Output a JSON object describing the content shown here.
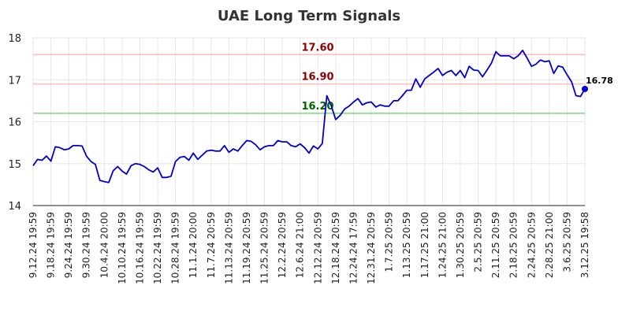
{
  "chart_data": {
    "type": "line",
    "title": "UAE Long Term Signals",
    "xlabel": "",
    "ylabel": "",
    "ylim": [
      14,
      18
    ],
    "yticks": [
      14,
      15,
      16,
      17,
      18
    ],
    "grid": true,
    "line_color": "#0000cc",
    "x_tick_labels": [
      "9.12.24 19:59",
      "9.18.24 19:59",
      "9.24.24 19:59",
      "9.30.24 19:59",
      "10.4.24 20:00",
      "10.10.24 19:59",
      "10.16.24 19:59",
      "10.22.24 19:59",
      "10.28.24 19:59",
      "11.1.24 20:00",
      "11.7.24 20:59",
      "11.13.24 20:59",
      "11.19.24 20:59",
      "11.25.24 20:59",
      "12.2.24 20:59",
      "12.6.24 21:00",
      "12.12.24 20:59",
      "12.18.24 20:59",
      "12.24.24 17:59",
      "12.31.24 20:59",
      "1.7.25 20:59",
      "1.13.25 20:59",
      "1.17.25 21:00",
      "1.24.25 21:00",
      "1.30.25 20:59",
      "2.5.25 20:59",
      "2.11.25 20:59",
      "2.18.25 20:59",
      "2.24.25 20:59",
      "2.28.25 21:00",
      "3.6.25 20:59",
      "3.12.25 19:58"
    ],
    "reference_lines": [
      {
        "value": 17.6,
        "label": "17.60",
        "line_color": "#ffbbbb",
        "label_color": "#8b0000"
      },
      {
        "value": 16.9,
        "label": "16.90",
        "line_color": "#ffbbbb",
        "label_color": "#8b0000"
      },
      {
        "value": 16.2,
        "label": "16.20",
        "line_color": "#77dd77",
        "label_color": "#006400"
      }
    ],
    "last_value": {
      "value": 16.78,
      "label": "16.78"
    },
    "series": [
      {
        "values": [
          14.95,
          15.1,
          15.08,
          15.18,
          15.06,
          15.4,
          15.38,
          15.33,
          15.35,
          15.43,
          15.43,
          15.42,
          15.18,
          15.05,
          14.98,
          14.6,
          14.57,
          14.55,
          14.83,
          14.93,
          14.82,
          14.75,
          14.95,
          15.0,
          14.98,
          14.93,
          14.85,
          14.8,
          14.9,
          14.67,
          14.67,
          14.7,
          15.05,
          15.15,
          15.17,
          15.08,
          15.25,
          15.1,
          15.2,
          15.3,
          15.32,
          15.3,
          15.3,
          15.43,
          15.27,
          15.35,
          15.3,
          15.43,
          15.55,
          15.53,
          15.45,
          15.33,
          15.4,
          15.43,
          15.43,
          15.55,
          15.52,
          15.52,
          15.43,
          15.4,
          15.47,
          15.38,
          15.25,
          15.42,
          15.35,
          15.48,
          16.62,
          16.38,
          16.05,
          16.15,
          16.3,
          16.37,
          16.47,
          16.55,
          16.4,
          16.45,
          16.47,
          16.35,
          16.4,
          16.37,
          16.37,
          16.5,
          16.5,
          16.62,
          16.75,
          16.75,
          17.02,
          16.82,
          17.02,
          17.1,
          17.18,
          17.27,
          17.1,
          17.18,
          17.22,
          17.1,
          17.22,
          17.05,
          17.32,
          17.23,
          17.22,
          17.07,
          17.23,
          17.4,
          17.67,
          17.57,
          17.57,
          17.57,
          17.5,
          17.57,
          17.7,
          17.52,
          17.32,
          17.37,
          17.47,
          17.43,
          17.45,
          17.15,
          17.33,
          17.3,
          17.12,
          16.95,
          16.62,
          16.6,
          16.78
        ]
      }
    ]
  }
}
